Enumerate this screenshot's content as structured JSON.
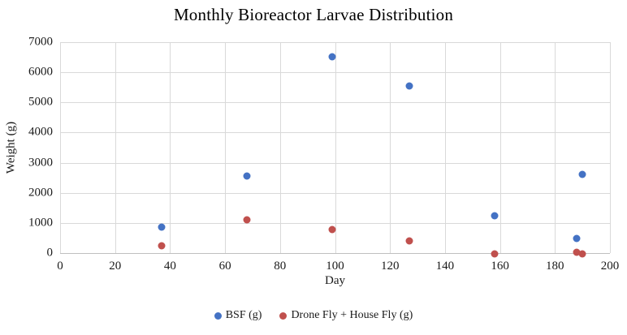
{
  "chart_data": {
    "type": "scatter",
    "title": "Monthly Bioreactor Larvae Distribution",
    "xlabel": "Day",
    "ylabel": "Weight (g)",
    "xlim": [
      0,
      200
    ],
    "ylim": [
      0,
      7000
    ],
    "x_ticks": [
      0,
      20,
      40,
      60,
      80,
      100,
      120,
      140,
      160,
      180,
      200
    ],
    "y_ticks": [
      0,
      1000,
      2000,
      3000,
      4000,
      5000,
      6000,
      7000
    ],
    "grid": true,
    "legend_position": "bottom",
    "background_color": "#ffffff",
    "gridline_color": "#d9d9d9",
    "axis_line_color": "#bfbfbf",
    "series": [
      {
        "name": "BSF (g)",
        "color": "#4472C4",
        "points": [
          {
            "x": 37,
            "y": 870
          },
          {
            "x": 68,
            "y": 2560
          },
          {
            "x": 99,
            "y": 6520
          },
          {
            "x": 127,
            "y": 5550
          },
          {
            "x": 158,
            "y": 1230
          },
          {
            "x": 188,
            "y": 490
          },
          {
            "x": 190,
            "y": 2600
          }
        ]
      },
      {
        "name": "Drone Fly + House Fly (g)",
        "color": "#C0504D",
        "points": [
          {
            "x": 37,
            "y": 230
          },
          {
            "x": 68,
            "y": 1110
          },
          {
            "x": 99,
            "y": 790
          },
          {
            "x": 127,
            "y": 400
          },
          {
            "x": 158,
            "y": -30
          },
          {
            "x": 188,
            "y": 20
          },
          {
            "x": 190,
            "y": -30
          }
        ]
      }
    ]
  }
}
